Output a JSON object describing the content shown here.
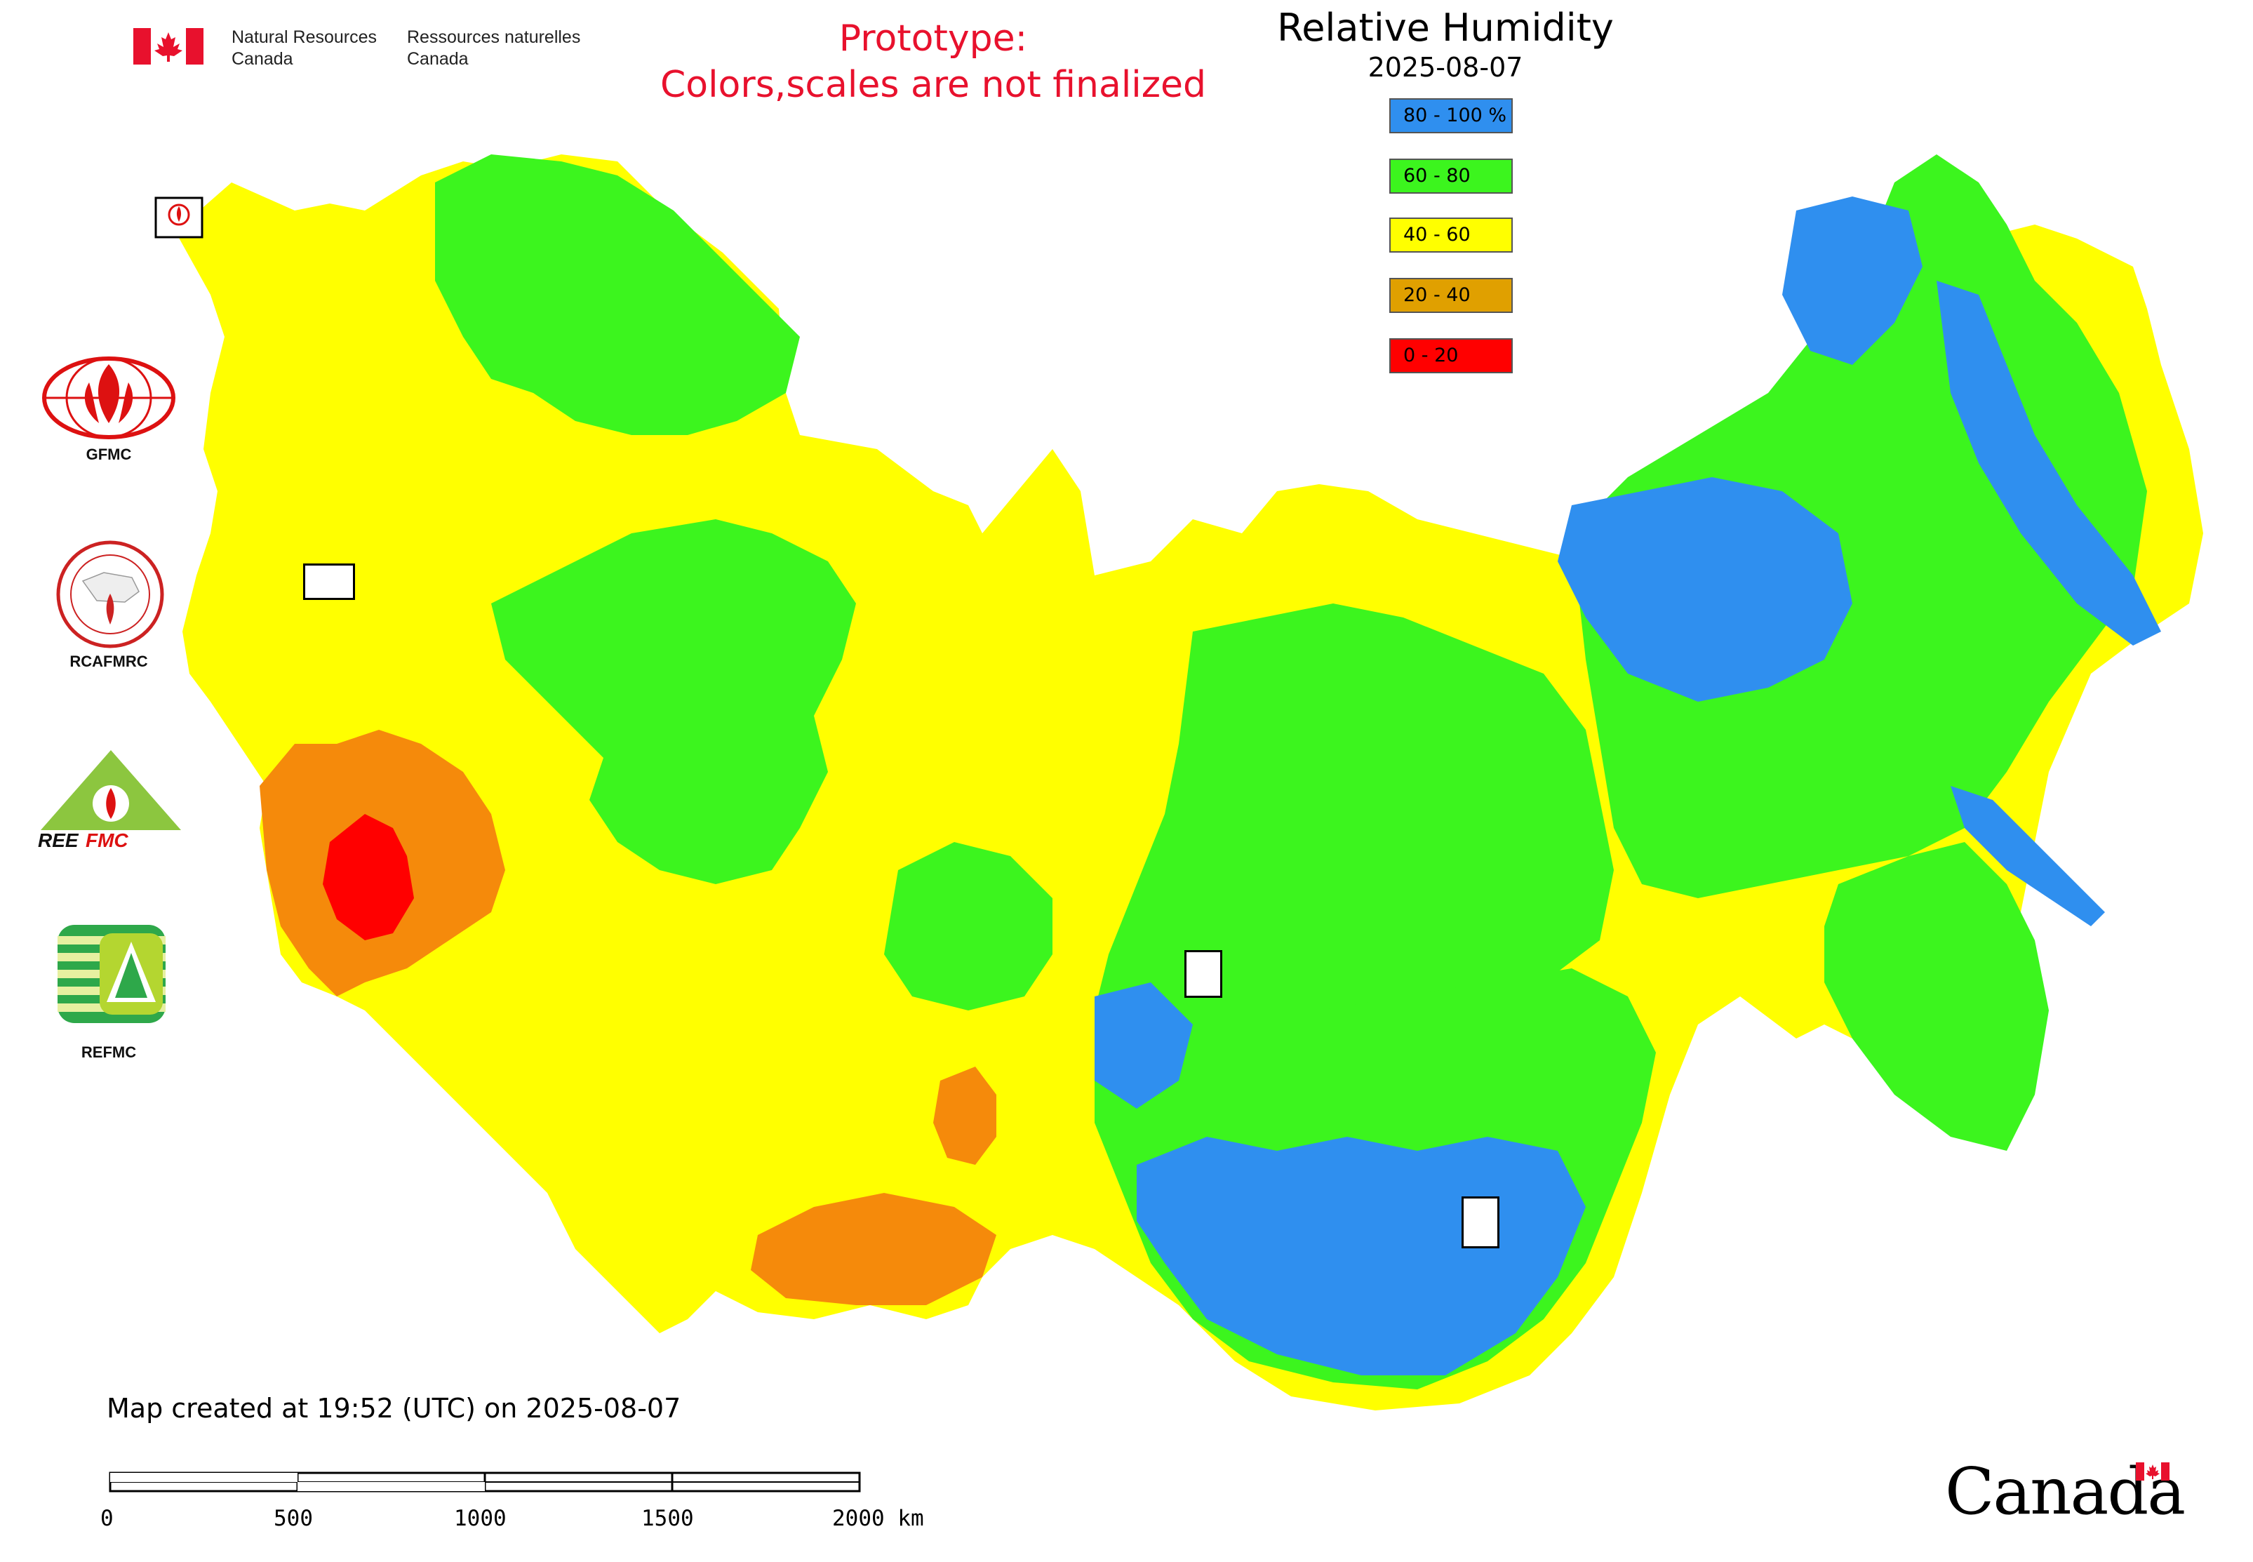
{
  "header": {
    "org_en_line1": "Natural Resources",
    "org_en_line2": "Canada",
    "org_fr_line1": "Ressources naturelles",
    "org_fr_line2": "Canada",
    "prototype_line1": "Prototype:",
    "prototype_line2": "Colors,scales are not finalized",
    "title": "Relative Humidity",
    "date": "2025-08-07"
  },
  "legend": [
    {
      "label": "80 - 100 %",
      "color": "#2f8fef"
    },
    {
      "label": "60 - 80",
      "color": "#3cf51e"
    },
    {
      "label": "40 - 60",
      "color": "#ffff00"
    },
    {
      "label": "20 - 40",
      "color": "#e0a000"
    },
    {
      "label": "0 - 20",
      "color": "#ff0000"
    }
  ],
  "logos": [
    {
      "label": "GFMC"
    },
    {
      "label": "RCAFMRC"
    },
    {
      "label": "REEFMC"
    },
    {
      "label": "REFMC"
    }
  ],
  "footer": {
    "created": "Map created at 19:52 (UTC) on 2025-08-07",
    "wordmark": "Canada"
  },
  "scale_bar": {
    "labels": [
      "0",
      "500",
      "1000",
      "1500",
      "2000 km"
    ]
  },
  "colors": {
    "blue": "#2f8fef",
    "green": "#3cf51e",
    "yellow": "#ffff00",
    "orange": "#f58a0b",
    "red": "#ff0000",
    "title_red": "#e8112d"
  }
}
